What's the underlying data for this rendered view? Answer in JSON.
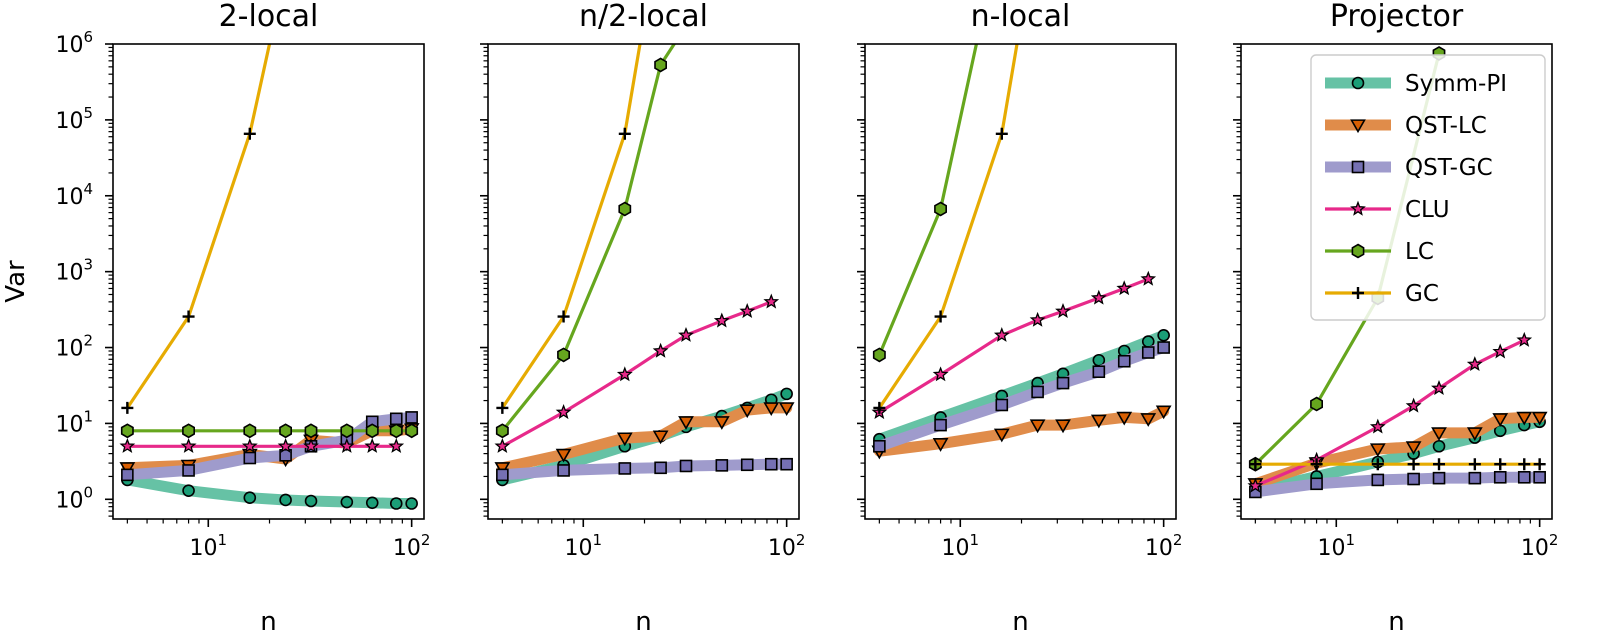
{
  "chart_data": {
    "type": "line",
    "shared": {
      "xscale": "log",
      "yscale": "log",
      "xlim": [
        3.4,
        115
      ],
      "ylim": [
        0.55,
        1000000
      ],
      "xlabel": "n",
      "ylabel": "Var",
      "xticks": [
        {
          "value": 10,
          "base": "10",
          "exp": "1"
        },
        {
          "value": 100,
          "base": "10",
          "exp": "2"
        }
      ],
      "yticks": [
        {
          "value": 1,
          "base": "10",
          "exp": "0"
        },
        {
          "value": 10,
          "base": "10",
          "exp": "1"
        },
        {
          "value": 100,
          "base": "10",
          "exp": "2"
        },
        {
          "value": 1000,
          "base": "10",
          "exp": "3"
        },
        {
          "value": 10000,
          "base": "10",
          "exp": "4"
        },
        {
          "value": 100000,
          "base": "10",
          "exp": "5"
        },
        {
          "value": 1000000,
          "base": "10",
          "exp": "6"
        }
      ],
      "grid": false,
      "legend_position": "upper-right of last panel"
    },
    "series_styles": [
      {
        "name": "Symm-PI",
        "color": "#66c2a5",
        "marker": "circle",
        "marker_color": "#1b9e77",
        "thick": true
      },
      {
        "name": "QST-LC",
        "color": "#e08c4a",
        "marker": "triangle-down",
        "marker_color": "#d95f02",
        "thick": true
      },
      {
        "name": "QST-GC",
        "color": "#9f9bcc",
        "marker": "square",
        "marker_color": "#7570b3",
        "thick": true
      },
      {
        "name": "CLU",
        "color": "#e7298a",
        "marker": "star",
        "marker_color": "#e7298a",
        "thick": false
      },
      {
        "name": "LC",
        "color": "#66a61e",
        "marker": "hexagon",
        "marker_color": "#66a61e",
        "thick": false
      },
      {
        "name": "GC",
        "color": "#e6ab02",
        "marker": "plus",
        "marker_color": "#e6ab02",
        "thick": false
      }
    ],
    "panels": [
      {
        "title": "2-local",
        "show_ylabel": true,
        "series": [
          {
            "name": "Symm-PI",
            "x": [
              4,
              8,
              16,
              24,
              32,
              48,
              64,
              84,
              100
            ],
            "y": [
              1.8,
              1.3,
              1.05,
              0.98,
              0.95,
              0.92,
              0.9,
              0.88,
              0.88
            ]
          },
          {
            "name": "QST-LC",
            "x": [
              4,
              8,
              16,
              24,
              32,
              48,
              64,
              84,
              100
            ],
            "y": [
              2.6,
              2.8,
              3.9,
              3.4,
              6.0,
              5.5,
              8.0,
              8.0,
              8.5
            ]
          },
          {
            "name": "QST-GC",
            "x": [
              4,
              8,
              16,
              24,
              32,
              48,
              64,
              84,
              100
            ],
            "y": [
              2.1,
              2.4,
              3.5,
              3.8,
              5.0,
              6.0,
              10.5,
              11.5,
              12.0
            ]
          },
          {
            "name": "CLU",
            "x": [
              4,
              8,
              16,
              24,
              32,
              48,
              64,
              84
            ],
            "y": [
              5,
              5,
              5,
              5,
              5,
              5,
              5,
              5
            ]
          },
          {
            "name": "LC",
            "x": [
              4,
              8,
              16,
              24,
              32,
              48,
              64,
              84,
              100
            ],
            "y": [
              8,
              8,
              8,
              8,
              8,
              8,
              8,
              8,
              8
            ]
          },
          {
            "name": "GC",
            "x": [
              4,
              8,
              16,
              20
            ],
            "y": [
              16,
              256,
              65536,
              1000000
            ]
          }
        ]
      },
      {
        "title": "n/2-local",
        "show_ylabel": false,
        "series": [
          {
            "name": "Symm-PI",
            "x": [
              4,
              8,
              16,
              24,
              32,
              48,
              64,
              84,
              100
            ],
            "y": [
              1.8,
              2.8,
              5.0,
              6.8,
              9.0,
              12.5,
              16.0,
              20.5,
              24.5
            ]
          },
          {
            "name": "QST-LC",
            "x": [
              4,
              8,
              16,
              24,
              32,
              48,
              64,
              84,
              100
            ],
            "y": [
              2.6,
              3.9,
              6.4,
              6.8,
              10.5,
              10.5,
              15.0,
              16.0,
              16.0
            ]
          },
          {
            "name": "QST-GC",
            "x": [
              4,
              8,
              16,
              24,
              32,
              48,
              64,
              84,
              100
            ],
            "y": [
              2.1,
              2.4,
              2.55,
              2.6,
              2.75,
              2.8,
              2.85,
              2.9,
              2.9
            ]
          },
          {
            "name": "CLU",
            "x": [
              4,
              8,
              16,
              24,
              32,
              48,
              64,
              84
            ],
            "y": [
              5,
              14,
              44,
              90,
              145,
              225,
              300,
              400
            ]
          },
          {
            "name": "LC",
            "x": [
              4,
              8,
              16,
              24,
              28
            ],
            "y": [
              8,
              80,
              6700,
              530000,
              1000000
            ]
          },
          {
            "name": "GC",
            "x": [
              4,
              8,
              16,
              19
            ],
            "y": [
              16,
              256,
              65536,
              1000000
            ]
          }
        ]
      },
      {
        "title": "n-local",
        "show_ylabel": false,
        "series": [
          {
            "name": "Symm-PI",
            "x": [
              4,
              8,
              16,
              24,
              32,
              48,
              64,
              84,
              100
            ],
            "y": [
              6.2,
              12.0,
              23.0,
              34.0,
              45.0,
              68.0,
              90.0,
              120.0,
              145.0
            ]
          },
          {
            "name": "QST-LC",
            "x": [
              4,
              8,
              16,
              24,
              32,
              48,
              64,
              84,
              100
            ],
            "y": [
              4.3,
              5.4,
              7.2,
              9.5,
              9.5,
              11.0,
              12.0,
              11.5,
              14.5
            ]
          },
          {
            "name": "QST-GC",
            "x": [
              4,
              8,
              16,
              24,
              32,
              48,
              64,
              84,
              100
            ],
            "y": [
              5.0,
              9.5,
              17.5,
              26.0,
              34.0,
              48.0,
              66.0,
              86.0,
              100.0
            ]
          },
          {
            "name": "CLU",
            "x": [
              4,
              8,
              16,
              24,
              32,
              48,
              64,
              84
            ],
            "y": [
              14,
              44,
              145,
              230,
              300,
              450,
              600,
              800
            ]
          },
          {
            "name": "LC",
            "x": [
              4,
              8,
              12
            ],
            "y": [
              80,
              6700,
              1000000
            ]
          },
          {
            "name": "GC",
            "x": [
              4,
              8,
              16,
              19
            ],
            "y": [
              16,
              256,
              65536,
              1000000
            ]
          }
        ]
      },
      {
        "title": "Projector",
        "show_ylabel": false,
        "series": [
          {
            "name": "Symm-PI",
            "x": [
              4,
              8,
              16,
              24,
              32,
              48,
              64,
              84,
              100
            ],
            "y": [
              1.3,
              2.0,
              3.1,
              4.0,
              5.0,
              6.5,
              8.0,
              9.5,
              10.5
            ]
          },
          {
            "name": "QST-LC",
            "x": [
              4,
              8,
              16,
              24,
              32,
              48,
              64,
              84,
              100
            ],
            "y": [
              1.6,
              3.0,
              4.6,
              4.9,
              7.5,
              7.5,
              11.5,
              12.0,
              12.0
            ]
          },
          {
            "name": "QST-GC",
            "x": [
              4,
              8,
              16,
              24,
              32,
              48,
              64,
              84,
              100
            ],
            "y": [
              1.25,
              1.6,
              1.8,
              1.85,
              1.9,
              1.9,
              1.95,
              1.95,
              1.95
            ]
          },
          {
            "name": "CLU",
            "x": [
              4,
              8,
              16,
              24,
              32,
              48,
              64,
              84
            ],
            "y": [
              1.5,
              3.3,
              9,
              17,
              29,
              60,
              88,
              125
            ]
          },
          {
            "name": "LC",
            "x": [
              4,
              8,
              16,
              32
            ],
            "y": [
              2.9,
              18,
              450,
              750000
            ]
          },
          {
            "name": "GC",
            "x": [
              4,
              8,
              16,
              24,
              32,
              48,
              64,
              84,
              100
            ],
            "y": [
              2.9,
              2.9,
              2.9,
              2.9,
              2.9,
              2.9,
              2.9,
              2.9,
              2.9
            ]
          }
        ]
      }
    ]
  }
}
